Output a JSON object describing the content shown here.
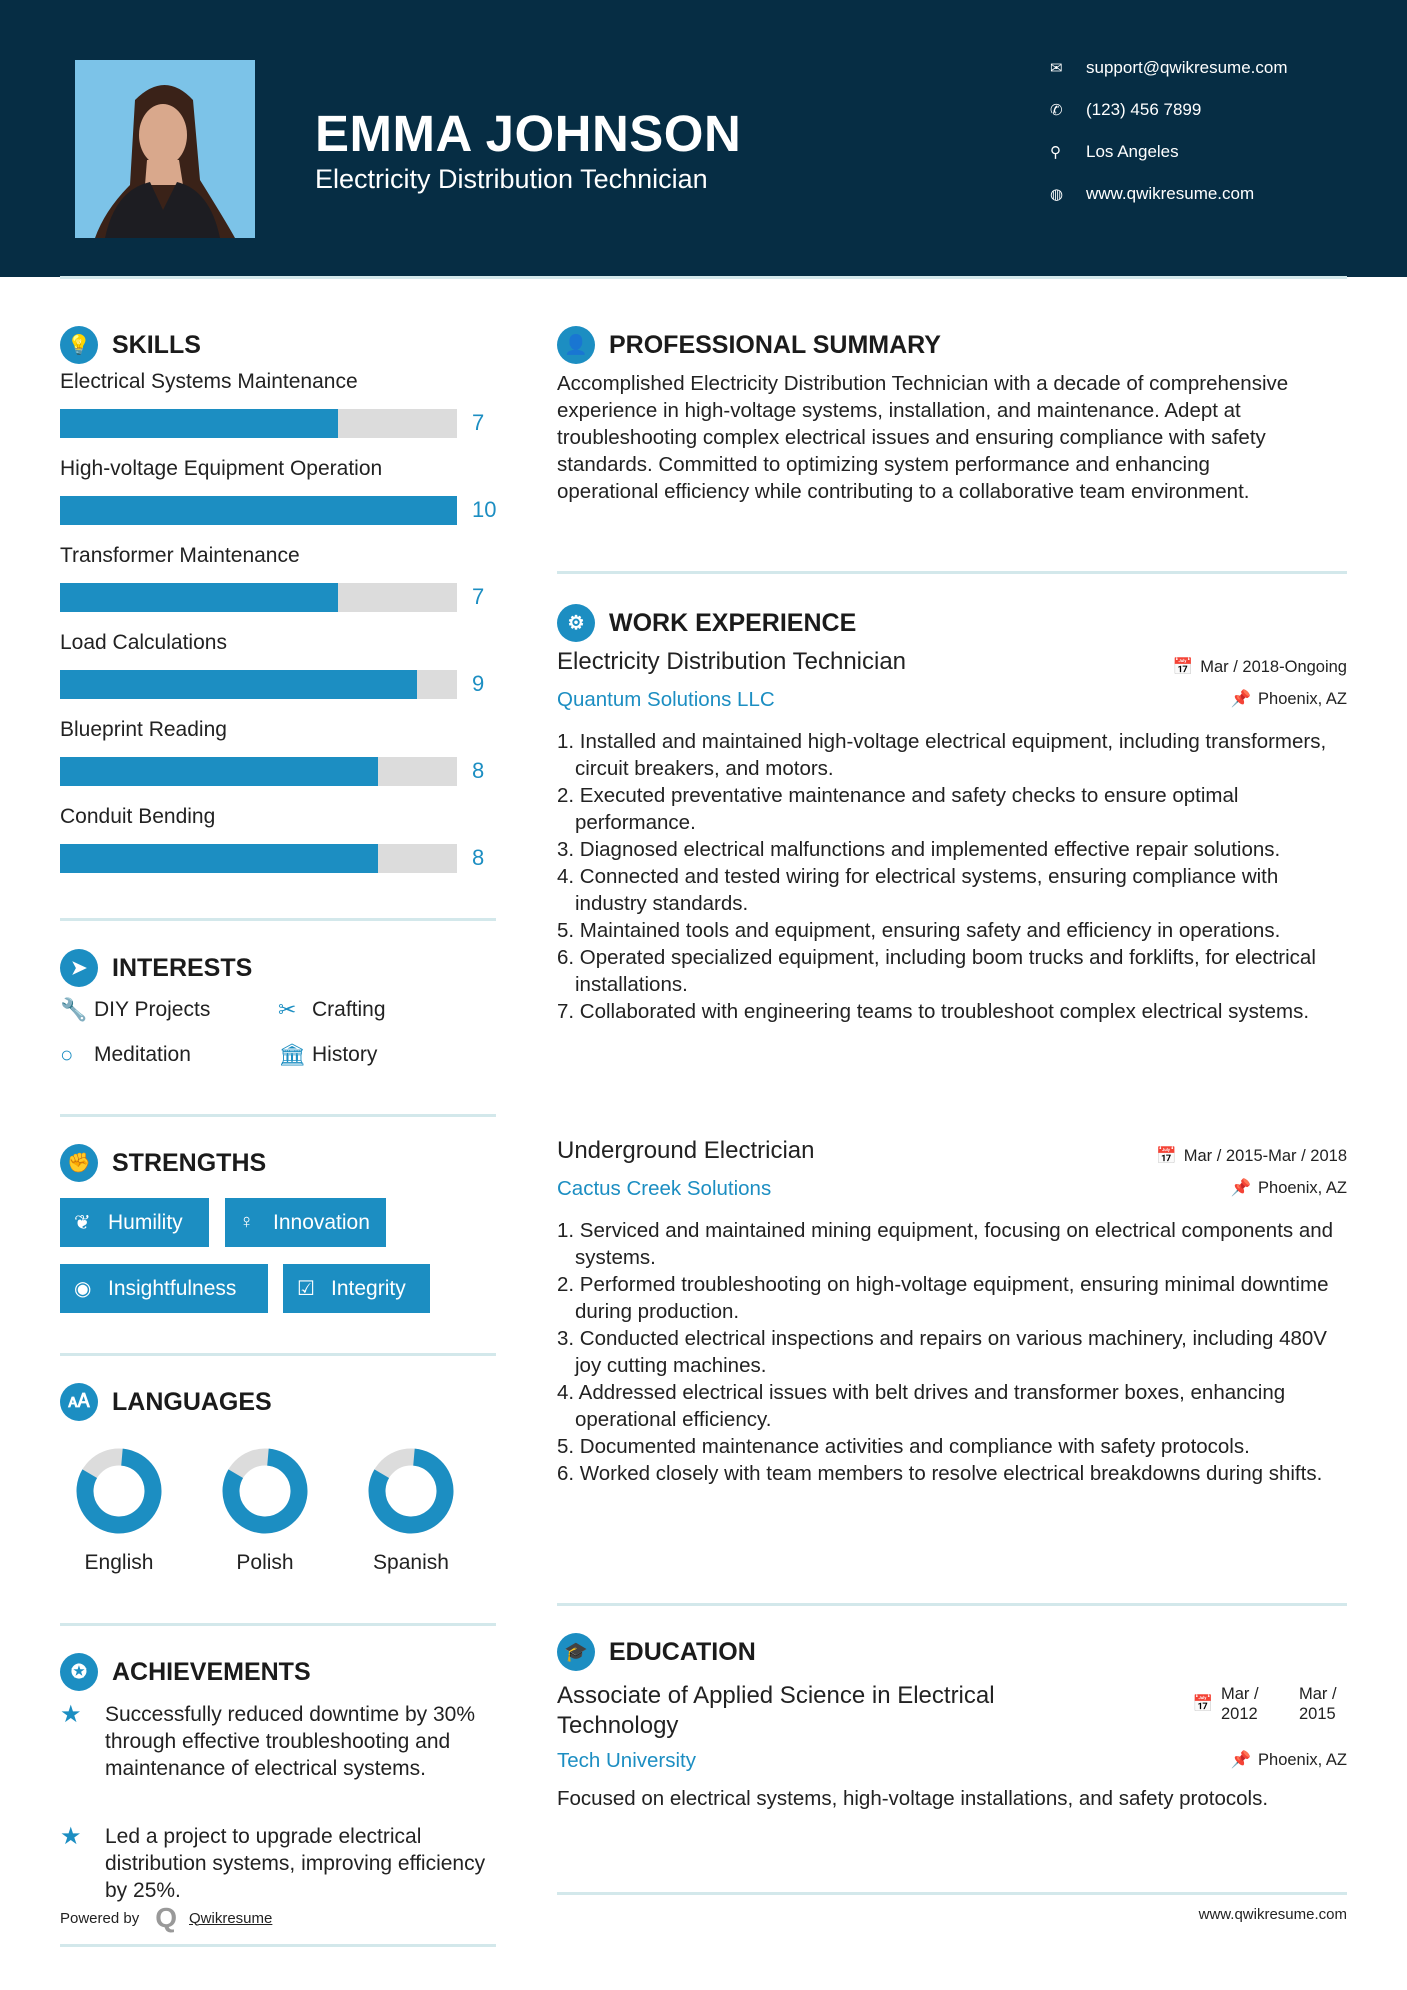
{
  "header": {
    "name": "EMMA JOHNSON",
    "title": "Electricity Distribution Technician",
    "contacts": [
      {
        "icon": "envelope-icon",
        "glyph": "✉",
        "text": "support@qwikresume.com"
      },
      {
        "icon": "phone-icon",
        "glyph": "✆",
        "text": "(123) 456 7899"
      },
      {
        "icon": "map-pin-icon",
        "glyph": "⚲",
        "text": "Los Angeles"
      },
      {
        "icon": "globe-icon",
        "glyph": "◍",
        "text": "www.qwikresume.com"
      }
    ]
  },
  "colors": {
    "header_bg": "#062d44",
    "accent": "#1c8ec2",
    "bar_empty": "#dcdcdc",
    "divider": "#d3e8eb"
  },
  "skills": {
    "heading": "SKILLS",
    "items": [
      {
        "label": "Electrical Systems Maintenance",
        "value": "7",
        "level": 7
      },
      {
        "label": "High-voltage Equipment Operation",
        "value": "10",
        "level": 10
      },
      {
        "label": "Transformer Maintenance",
        "value": "7",
        "level": 7
      },
      {
        "label": "Load Calculations",
        "value": "9",
        "level": 9
      },
      {
        "label": "Blueprint Reading",
        "value": "8",
        "level": 8
      },
      {
        "label": "Conduit Bending",
        "value": "8",
        "level": 8
      }
    ],
    "max": 10
  },
  "interests": {
    "heading": "INTERESTS",
    "items": [
      {
        "label": "DIY Projects",
        "icon": "wrench-icon",
        "glyph": "🔧"
      },
      {
        "label": "Crafting",
        "icon": "scissors-icon",
        "glyph": "✂"
      },
      {
        "label": "Meditation",
        "icon": "circle-icon",
        "glyph": "○"
      },
      {
        "label": "History",
        "icon": "museum-icon",
        "glyph": "🏛"
      }
    ]
  },
  "strengths": {
    "heading": "STRENGTHS",
    "items": [
      {
        "label": "Humility",
        "icon": "leaf-icon",
        "glyph": "❦"
      },
      {
        "label": "Innovation",
        "icon": "lightbulb-icon",
        "glyph": "♀"
      },
      {
        "label": "Insightfulness",
        "icon": "eye-icon",
        "glyph": "◉"
      },
      {
        "label": "Integrity",
        "icon": "checkbox-icon",
        "glyph": "☑"
      }
    ]
  },
  "languages": {
    "heading": "LANGUAGES",
    "items": [
      {
        "label": "English",
        "percent": 82
      },
      {
        "label": "Polish",
        "percent": 82
      },
      {
        "label": "Spanish",
        "percent": 82
      }
    ]
  },
  "achievements": {
    "heading": "ACHIEVEMENTS",
    "items": [
      "Successfully reduced downtime by 30% through effective troubleshooting and maintenance of electrical systems.",
      "Led a project to upgrade electrical distribution systems, improving efficiency by 25%."
    ]
  },
  "powered": {
    "prefix": "Powered by",
    "brand": "Qwikresume"
  },
  "summary": {
    "heading": "PROFESSIONAL SUMMARY",
    "text": "Accomplished Electricity Distribution Technician with a decade of comprehensive experience in high-voltage systems, installation, and maintenance. Adept at troubleshooting complex electrical issues and ensuring compliance with safety standards. Committed to optimizing system performance and enhancing operational efficiency while contributing to a collaborative team environment."
  },
  "experience": {
    "heading": "WORK EXPERIENCE",
    "jobs": [
      {
        "title": "Electricity Distribution Technician",
        "company": "Quantum Solutions LLC",
        "dates": "Mar / 2018-Ongoing",
        "location": "Phoenix, AZ",
        "duties": [
          "Installed and maintained high-voltage electrical equipment, including transformers, circuit breakers, and motors.",
          "Executed preventative maintenance and safety checks to ensure optimal performance.",
          "Diagnosed electrical malfunctions and implemented effective repair solutions.",
          "Connected and tested wiring for electrical systems, ensuring compliance with industry standards.",
          "Maintained tools and equipment, ensuring safety and efficiency in operations.",
          "Operated specialized equipment, including boom trucks and forklifts, for electrical installations.",
          "Collaborated with engineering teams to troubleshoot complex electrical systems."
        ]
      },
      {
        "title": "Underground Electrician",
        "company": "Cactus Creek Solutions",
        "dates": "Mar / 2015-Mar / 2018",
        "location": "Phoenix, AZ",
        "duties": [
          "Serviced and maintained mining equipment, focusing on electrical components and systems.",
          "Performed troubleshooting on high-voltage equipment, ensuring minimal downtime during production.",
          "Conducted electrical inspections and repairs on various machinery, including 480V joy cutting machines.",
          "Addressed electrical issues with belt drives and transformer boxes, enhancing operational efficiency.",
          "Documented maintenance activities and compliance with safety protocols.",
          "Worked closely with team members to resolve electrical breakdowns during shifts."
        ]
      }
    ]
  },
  "education": {
    "heading": "EDUCATION",
    "degree": "Associate of Applied Science in Electrical Technology",
    "school": "Tech University",
    "start": "Mar / 2012",
    "end": "Mar / 2015",
    "location": "Phoenix, AZ",
    "description": "Focused on electrical systems, high-voltage installations, and safety protocols."
  },
  "footer": {
    "url": "www.qwikresume.com"
  }
}
